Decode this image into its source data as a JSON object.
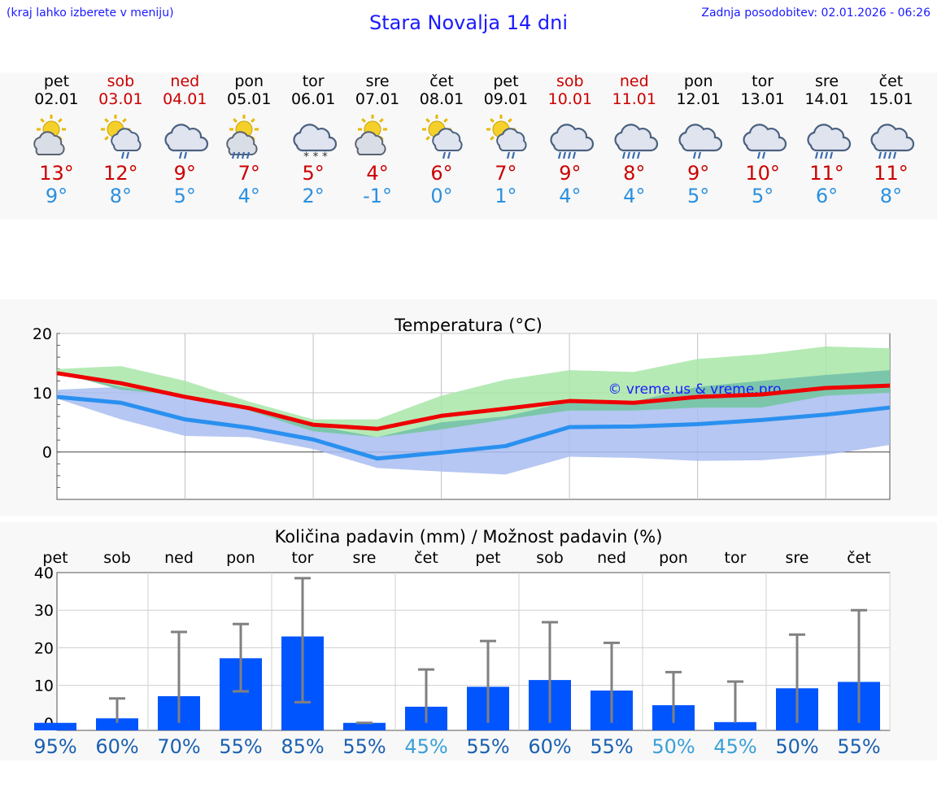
{
  "header": {
    "left_note": "(kraj lahko izberete v meniju)",
    "title": "Stara Novalja 14 dni",
    "updated": "Zadnja posodobitev: 02.01.2026 - 06:26"
  },
  "forecast": [
    {
      "day": "pet",
      "date": "02.01",
      "weekend": false,
      "icon": "sun-cloud-icon",
      "tmax": "13°",
      "tmin": "9°"
    },
    {
      "day": "sob",
      "date": "03.01",
      "weekend": true,
      "icon": "sun-cloud-rain-icon",
      "tmax": "12°",
      "tmin": "8°"
    },
    {
      "day": "ned",
      "date": "04.01",
      "weekend": true,
      "icon": "cloud-rain-icon",
      "tmax": "9°",
      "tmin": "5°"
    },
    {
      "day": "pon",
      "date": "05.01",
      "weekend": false,
      "icon": "sun-cloud-heavy-rain-icon",
      "tmax": "7°",
      "tmin": "4°"
    },
    {
      "day": "tor",
      "date": "06.01",
      "weekend": false,
      "icon": "cloud-snow-icon",
      "tmax": "5°",
      "tmin": "2°"
    },
    {
      "day": "sre",
      "date": "07.01",
      "weekend": false,
      "icon": "sun-cloud-icon",
      "tmax": "4°",
      "tmin": "-1°"
    },
    {
      "day": "čet",
      "date": "08.01",
      "weekend": false,
      "icon": "sun-cloud-rain-icon",
      "tmax": "6°",
      "tmin": "0°"
    },
    {
      "day": "pet",
      "date": "09.01",
      "weekend": false,
      "icon": "sun-cloud-rain-icon",
      "tmax": "7°",
      "tmin": "1°"
    },
    {
      "day": "sob",
      "date": "10.01",
      "weekend": true,
      "icon": "cloud-heavy-rain-icon",
      "tmax": "9°",
      "tmin": "4°"
    },
    {
      "day": "ned",
      "date": "11.01",
      "weekend": true,
      "icon": "cloud-heavy-rain-icon",
      "tmax": "8°",
      "tmin": "4°"
    },
    {
      "day": "pon",
      "date": "12.01",
      "weekend": false,
      "icon": "cloud-rain-icon",
      "tmax": "9°",
      "tmin": "5°"
    },
    {
      "day": "tor",
      "date": "13.01",
      "weekend": false,
      "icon": "cloud-rain-icon",
      "tmax": "10°",
      "tmin": "5°"
    },
    {
      "day": "sre",
      "date": "14.01",
      "weekend": false,
      "icon": "cloud-heavy-rain-icon",
      "tmax": "11°",
      "tmin": "6°"
    },
    {
      "day": "čet",
      "date": "15.01",
      "weekend": false,
      "icon": "cloud-heavy-rain-icon",
      "tmax": "11°",
      "tmin": "8°"
    }
  ],
  "colors": {
    "max_line": "#ee0000",
    "min_line": "#2a90f0",
    "max_band": "#a8e6a8",
    "min_band": "#a8bdf0",
    "bar": "#0055ff",
    "whisker": "#808080",
    "weekend": "#cc0000",
    "link": "#1a1aff"
  },
  "chart_data": [
    {
      "type": "line",
      "title": "Temperatura (°C)",
      "watermark": "© vreme.us & vreme.pro",
      "ylim": [
        -8,
        20
      ],
      "yticks": [
        "20",
        "10",
        "0"
      ],
      "x": [
        0,
        1,
        2,
        3,
        4,
        5,
        6,
        7,
        8,
        9,
        10,
        11,
        12,
        13
      ],
      "series": [
        {
          "name": "max",
          "values": [
            13.3,
            11.6,
            9.3,
            7.4,
            4.6,
            3.9,
            6.1,
            7.3,
            8.6,
            8.3,
            9.3,
            9.7,
            10.8,
            11.2
          ]
        },
        {
          "name": "min",
          "values": [
            9.3,
            8.3,
            5.5,
            4.1,
            2.1,
            -1.1,
            -0.1,
            1.0,
            4.2,
            4.3,
            4.7,
            5.4,
            6.3,
            7.5
          ]
        }
      ],
      "max_band_upper": [
        14.0,
        14.5,
        12.0,
        8.5,
        5.5,
        5.5,
        9.5,
        12.2,
        13.8,
        13.5,
        15.7,
        16.5,
        17.8,
        17.5
      ],
      "max_band_lower": [
        13.5,
        10.5,
        9.5,
        7.0,
        3.5,
        2.5,
        3.8,
        5.5,
        7.0,
        7.0,
        7.5,
        7.5,
        9.5,
        10.0
      ],
      "min_band_upper": [
        10.5,
        11.0,
        9.3,
        7.5,
        4.5,
        2.5,
        5.0,
        6.0,
        8.5,
        8.5,
        11.0,
        12.0,
        13.0,
        13.8
      ],
      "min_band_lower": [
        9.0,
        5.5,
        2.7,
        2.5,
        0.5,
        -2.7,
        -3.3,
        -3.8,
        -0.8,
        -1.0,
        -1.5,
        -1.4,
        -0.5,
        1.2
      ]
    },
    {
      "type": "bar",
      "title": "Količina padavin (mm) / Možnost padavin (%)",
      "ylim": [
        -2,
        40
      ],
      "yticks": [
        "40",
        "30",
        "20",
        "10",
        "0"
      ],
      "categories": [
        "pet",
        "sob",
        "ned",
        "pon",
        "tor",
        "sre",
        "čet",
        "pet",
        "sob",
        "ned",
        "pon",
        "tor",
        "sre",
        "čet"
      ],
      "values": [
        0,
        1.2,
        7.1,
        17.2,
        23.0,
        0,
        4.3,
        9.6,
        11.4,
        8.6,
        4.7,
        0.2,
        9.2,
        10.9
      ],
      "whisker_max": [
        0,
        6.5,
        24.2,
        26.3,
        38.5,
        0,
        14.2,
        21.8,
        26.8,
        21.3,
        13.5,
        11.0,
        23.5,
        30.0
      ],
      "whisker_min": [
        0,
        0,
        0,
        8.4,
        5.5,
        0,
        0,
        0,
        0,
        0,
        0,
        0,
        0,
        0
      ],
      "probability": [
        "95%",
        "60%",
        "70%",
        "55%",
        "85%",
        "55%",
        "45%",
        "55%",
        "60%",
        "55%",
        "50%",
        "45%",
        "50%",
        "55%"
      ],
      "probability_shade": [
        "dark",
        "dark",
        "dark",
        "dark",
        "dark",
        "dark",
        "light",
        "dark",
        "dark",
        "dark",
        "light",
        "light",
        "dark",
        "dark"
      ]
    }
  ]
}
